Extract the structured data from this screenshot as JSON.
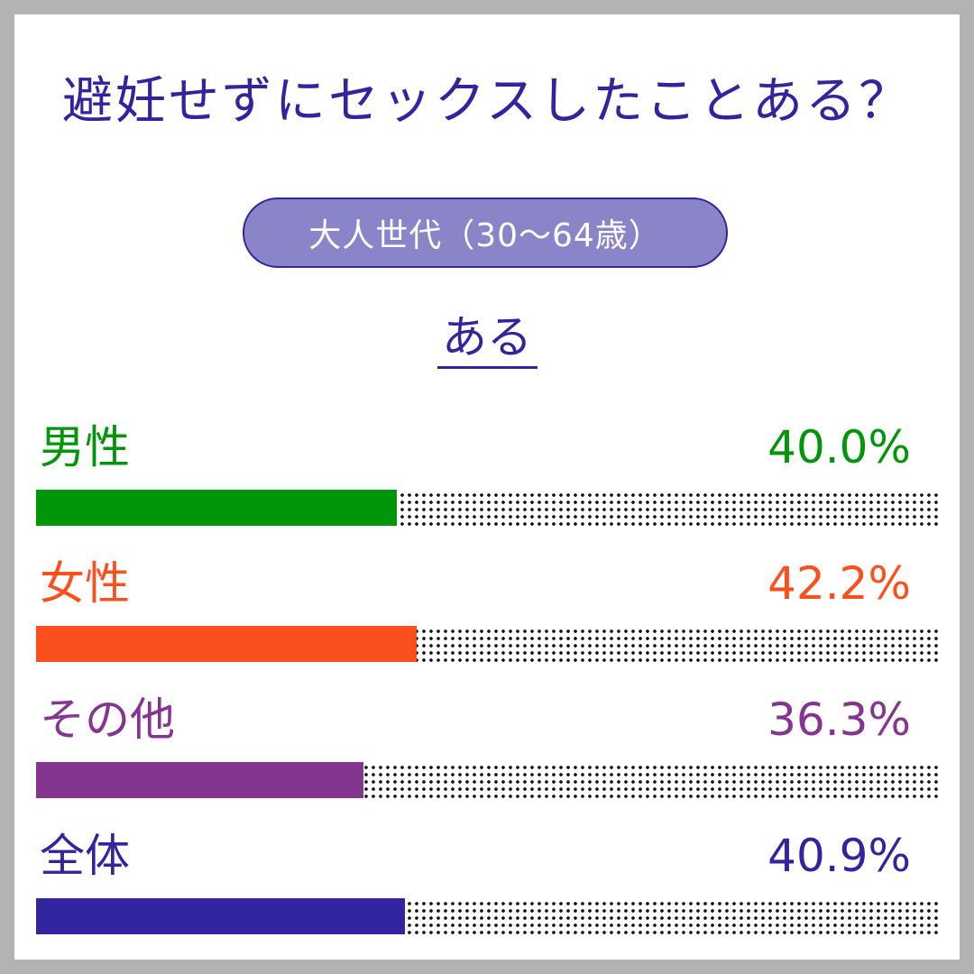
{
  "chart_data": {
    "type": "bar",
    "title": "避妊せずにセックスしたことある？",
    "subtitle": "大人世代（30～64歳）",
    "answer_label": "ある",
    "categories": [
      "男性",
      "女性",
      "その他",
      "全体"
    ],
    "values": [
      40.0,
      42.2,
      36.3,
      40.9
    ],
    "value_labels": [
      "40.0%",
      "42.2%",
      "36.3%",
      "40.9%"
    ],
    "colors": [
      "#00960a",
      "#fa501e",
      "#83358f",
      "#32249c"
    ],
    "ylim": [
      0,
      100
    ],
    "orientation": "horizontal",
    "grid": false,
    "legend": "none"
  },
  "colors": {
    "title": "#32249c",
    "pill_fill": "#8a85c8",
    "pill_border": "#32249c",
    "pill_text": "#ffffff",
    "frame": "#b3b3b3",
    "track_dots": "#111111"
  }
}
